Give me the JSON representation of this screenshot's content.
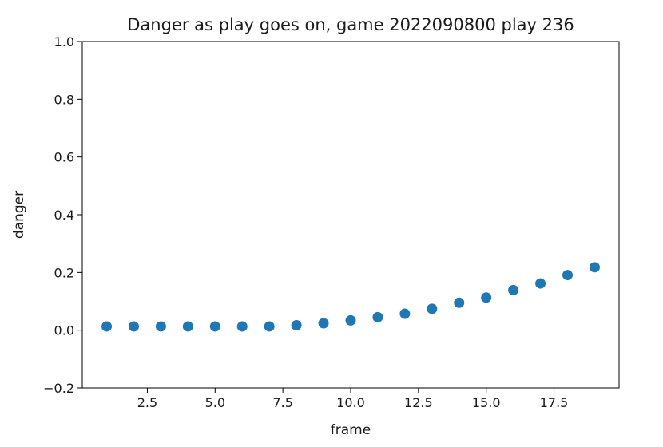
{
  "chart_data": {
    "type": "scatter",
    "title": "Danger as play goes on, game 2022090800 play 236",
    "xlabel": "frame",
    "ylabel": "danger",
    "xlim": [
      0.1,
      19.9
    ],
    "ylim": [
      -0.2,
      1.0
    ],
    "xticks": [
      2.5,
      5.0,
      7.5,
      10.0,
      12.5,
      15.0,
      17.5
    ],
    "xtick_labels": [
      "2.5",
      "5.0",
      "7.5",
      "10.0",
      "12.5",
      "15.0",
      "17.5"
    ],
    "yticks": [
      -0.2,
      0.0,
      0.2,
      0.4,
      0.6,
      0.8,
      1.0
    ],
    "ytick_labels": [
      "−0.2",
      "0.0",
      "0.2",
      "0.4",
      "0.6",
      "0.8",
      "1.0"
    ],
    "grid": false,
    "marker_color": "#1f77b4",
    "x": [
      1,
      2,
      3,
      4,
      5,
      6,
      7,
      8,
      9,
      10,
      11,
      12,
      13,
      14,
      15,
      16,
      17,
      18,
      19
    ],
    "y": [
      0.013,
      0.013,
      0.013,
      0.013,
      0.013,
      0.013,
      0.013,
      0.017,
      0.024,
      0.034,
      0.045,
      0.057,
      0.074,
      0.095,
      0.113,
      0.139,
      0.162,
      0.191,
      0.218
    ]
  }
}
